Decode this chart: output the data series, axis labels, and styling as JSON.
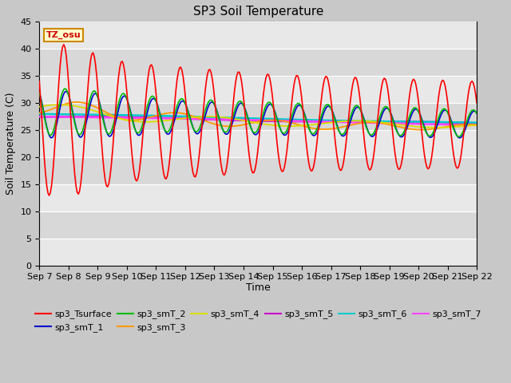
{
  "title": "SP3 Soil Temperature",
  "ylabel": "Soil Temperature (C)",
  "xlabel": "Time",
  "tz_label": "TZ_osu",
  "ylim": [
    0,
    45
  ],
  "yticks": [
    0,
    5,
    10,
    15,
    20,
    25,
    30,
    35,
    40,
    45
  ],
  "x_labels": [
    "Sep 7",
    "Sep 8",
    "Sep 9",
    "Sep 10",
    "Sep 11",
    "Sep 12",
    "Sep 13",
    "Sep 14",
    "Sep 15",
    "Sep 16",
    "Sep 17",
    "Sep 18",
    "Sep 19",
    "Sep 20",
    "Sep 21",
    "Sep 22"
  ],
  "series_colors": {
    "sp3_Tsurface": "#ff0000",
    "sp3_smT_1": "#0000cc",
    "sp3_smT_2": "#00bb00",
    "sp3_smT_3": "#ff9900",
    "sp3_smT_4": "#dddd00",
    "sp3_smT_5": "#cc00cc",
    "sp3_smT_6": "#00cccc",
    "sp3_smT_7": "#ff44ff"
  },
  "fig_bg": "#c8c8c8",
  "plot_bg": "#e8e8e8",
  "band_colors": [
    "#e8e8e8",
    "#d8d8d8"
  ],
  "title_fontsize": 11,
  "axis_label_fontsize": 9,
  "tick_fontsize": 8,
  "legend_fontsize": 8
}
